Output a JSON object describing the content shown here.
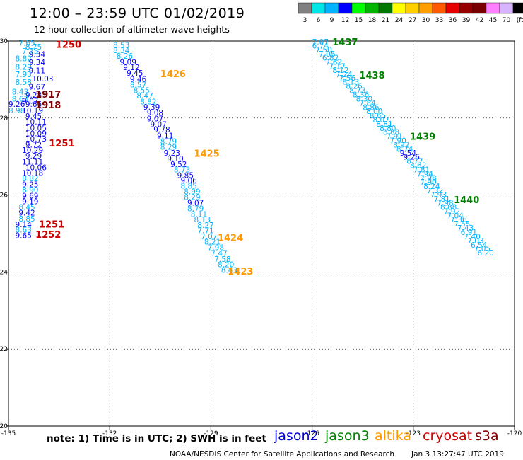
{
  "header": {
    "title": "12:00 – 23:59 UTC 01/02/2019",
    "subtitle": "12 hour collection of altimeter wave heights"
  },
  "colorbar": {
    "labels": [
      "3",
      "6",
      "9",
      "12",
      "15",
      "18",
      "21",
      "24",
      "27",
      "30",
      "33",
      "36",
      "39",
      "42",
      "45",
      "70",
      "(ft)"
    ],
    "colors": [
      "#808080",
      "#00e6e6",
      "#00b4ff",
      "#0000ff",
      "#00ff00",
      "#00b400",
      "#007800",
      "#ffff00",
      "#ffd000",
      "#ffa000",
      "#ff5a00",
      "#e60000",
      "#960000",
      "#780000",
      "#ff80ff",
      "#d7b4ff",
      "#000000"
    ]
  },
  "footer": {
    "note": "note:  1) Time is in UTC;  2) SWH is in feet",
    "credit_left": "NOAA/NESDIS Center for Satellite Applications and Research",
    "credit_right": "Jan  3 13:27:47 UTC 2019"
  },
  "legend": [
    {
      "name": "jason2",
      "color": "#0000cc"
    },
    {
      "name": "jason3",
      "color": "#008000"
    },
    {
      "name": "altika",
      "color": "#ff9900"
    },
    {
      "name": "cryosat",
      "color": "#cc0000"
    },
    {
      "name": "s3a",
      "color": "#800000"
    }
  ],
  "chart_data": {
    "type": "scatter",
    "title": "12:00 – 23:59 UTC 01/02/2019",
    "subtitle": "12 hour collection of altimeter wave heights",
    "xlabel": "",
    "ylabel": "",
    "xlim": [
      -135,
      -120
    ],
    "ylim": [
      20,
      30
    ],
    "xticks": [
      -135,
      -132,
      -129,
      -126,
      -123,
      -120
    ],
    "yticks": [
      20,
      22,
      24,
      26,
      28,
      30
    ],
    "xtick_labels": [
      "-135",
      "-132",
      "-129",
      "-126",
      "-123",
      "-120"
    ],
    "ytick_labels": [
      "20",
      "22",
      "24",
      "26",
      "28",
      "30"
    ],
    "grid": "dotted",
    "points": [
      {
        "x": -134.7,
        "y": 29.95,
        "t": "7.65",
        "c": "#00b4ff"
      },
      {
        "x": -134.5,
        "y": 29.85,
        "t": "8.75",
        "c": "#00b4ff"
      },
      {
        "x": -134.6,
        "y": 29.74,
        "t": "7.75",
        "c": "#00b4ff"
      },
      {
        "x": -134.4,
        "y": 29.66,
        "t": "9.34",
        "c": "#0000ff"
      },
      {
        "x": -134.8,
        "y": 29.55,
        "t": "8.82",
        "c": "#00b4ff"
      },
      {
        "x": -134.4,
        "y": 29.45,
        "t": "9.34",
        "c": "#0000ff"
      },
      {
        "x": -134.8,
        "y": 29.33,
        "t": "8.29",
        "c": "#00b4ff"
      },
      {
        "x": -134.4,
        "y": 29.24,
        "t": "9.11",
        "c": "#0000ff"
      },
      {
        "x": -134.8,
        "y": 29.14,
        "t": "7.93",
        "c": "#00b4ff"
      },
      {
        "x": -134.3,
        "y": 29.03,
        "t": "10.03",
        "c": "#0000ff"
      },
      {
        "x": -134.8,
        "y": 28.93,
        "t": "8.58",
        "c": "#00b4ff"
      },
      {
        "x": -134.4,
        "y": 28.81,
        "t": "9.67",
        "c": "#0000ff"
      },
      {
        "x": -134.9,
        "y": 28.69,
        "t": "8.43",
        "c": "#00b4ff"
      },
      {
        "x": -134.5,
        "y": 28.6,
        "t": "9.28",
        "c": "#0000ff"
      },
      {
        "x": -134.9,
        "y": 28.5,
        "t": "8.63",
        "c": "#00b4ff"
      },
      {
        "x": -134.6,
        "y": 28.45,
        "t": "9.07",
        "c": "#0000ff"
      },
      {
        "x": -135.0,
        "y": 28.36,
        "t": "9.26",
        "c": "#0000ff"
      },
      {
        "x": -134.5,
        "y": 28.36,
        "t": "9.66",
        "c": "#0000ff"
      },
      {
        "x": -135.0,
        "y": 28.2,
        "t": "8.98",
        "c": "#00b4ff"
      },
      {
        "x": -134.6,
        "y": 28.2,
        "t": "10.19",
        "c": "#0000ff"
      },
      {
        "x": -134.5,
        "y": 28.05,
        "t": "9.45",
        "c": "#0000ff"
      },
      {
        "x": -134.5,
        "y": 27.9,
        "t": "10.11",
        "c": "#0000ff"
      },
      {
        "x": -134.5,
        "y": 27.75,
        "t": "10.05",
        "c": "#0000ff"
      },
      {
        "x": -134.5,
        "y": 27.6,
        "t": "10.09",
        "c": "#0000ff"
      },
      {
        "x": -134.5,
        "y": 27.46,
        "t": "10.73",
        "c": "#0000ff"
      },
      {
        "x": -134.5,
        "y": 27.31,
        "t": "9.72",
        "c": "#0000ff"
      },
      {
        "x": -134.6,
        "y": 27.17,
        "t": "10.29",
        "c": "#0000ff"
      },
      {
        "x": -134.5,
        "y": 27.02,
        "t": "9.29",
        "c": "#0000ff"
      },
      {
        "x": -134.6,
        "y": 26.87,
        "t": "11.11",
        "c": "#0000ff"
      },
      {
        "x": -134.5,
        "y": 26.72,
        "t": "10.06",
        "c": "#0000ff"
      },
      {
        "x": -134.6,
        "y": 26.57,
        "t": "10.18",
        "c": "#0000ff"
      },
      {
        "x": -134.6,
        "y": 26.43,
        "t": "8.82",
        "c": "#00b4ff"
      },
      {
        "x": -134.6,
        "y": 26.28,
        "t": "9.25",
        "c": "#0000ff"
      },
      {
        "x": -134.6,
        "y": 26.14,
        "t": "8.90",
        "c": "#00b4ff"
      },
      {
        "x": -134.6,
        "y": 25.98,
        "t": "9.69",
        "c": "#0000ff"
      },
      {
        "x": -134.6,
        "y": 25.84,
        "t": "9.19",
        "c": "#0000ff"
      },
      {
        "x": -134.7,
        "y": 25.69,
        "t": "8.45",
        "c": "#00b4ff"
      },
      {
        "x": -134.7,
        "y": 25.54,
        "t": "9.42",
        "c": "#0000ff"
      },
      {
        "x": -134.7,
        "y": 25.39,
        "t": "8.85",
        "c": "#00b4ff"
      },
      {
        "x": -134.8,
        "y": 25.24,
        "t": "9.14",
        "c": "#0000ff"
      },
      {
        "x": -134.8,
        "y": 25.1,
        "t": "8.63",
        "c": "#00b4ff"
      },
      {
        "x": -134.8,
        "y": 24.95,
        "t": "9.65",
        "c": "#0000ff"
      },
      {
        "x": -131.9,
        "y": 29.9,
        "t": "8.53",
        "c": "#00b4ff"
      },
      {
        "x": -131.9,
        "y": 29.76,
        "t": "8.34",
        "c": "#00b4ff"
      },
      {
        "x": -131.8,
        "y": 29.61,
        "t": "8.26",
        "c": "#00b4ff"
      },
      {
        "x": -131.7,
        "y": 29.46,
        "t": "9.09",
        "c": "#0000ff"
      },
      {
        "x": -131.6,
        "y": 29.32,
        "t": "9.12",
        "c": "#0000ff"
      },
      {
        "x": -131.5,
        "y": 29.17,
        "t": "9.45",
        "c": "#0000ff"
      },
      {
        "x": -131.4,
        "y": 29.02,
        "t": "9.46",
        "c": "#0000ff"
      },
      {
        "x": -131.4,
        "y": 28.87,
        "t": "8.57",
        "c": "#00b4ff"
      },
      {
        "x": -131.3,
        "y": 28.72,
        "t": "8.55",
        "c": "#00b4ff"
      },
      {
        "x": -131.2,
        "y": 28.58,
        "t": "8.47",
        "c": "#00b4ff"
      },
      {
        "x": -131.1,
        "y": 28.43,
        "t": "8.82",
        "c": "#00b4ff"
      },
      {
        "x": -131.0,
        "y": 28.29,
        "t": "9.39",
        "c": "#0000ff"
      },
      {
        "x": -130.9,
        "y": 28.14,
        "t": "9.08",
        "c": "#0000ff"
      },
      {
        "x": -130.9,
        "y": 27.99,
        "t": "9.07",
        "c": "#0000ff"
      },
      {
        "x": -130.8,
        "y": 27.84,
        "t": "9.07",
        "c": "#0000ff"
      },
      {
        "x": -130.7,
        "y": 27.7,
        "t": "9.78",
        "c": "#0000ff"
      },
      {
        "x": -130.6,
        "y": 27.55,
        "t": "9.11",
        "c": "#0000ff"
      },
      {
        "x": -130.5,
        "y": 27.4,
        "t": "8.79",
        "c": "#00b4ff"
      },
      {
        "x": -130.5,
        "y": 27.25,
        "t": "8.29",
        "c": "#00b4ff"
      },
      {
        "x": -130.4,
        "y": 27.1,
        "t": "9.23",
        "c": "#0000ff"
      },
      {
        "x": -130.3,
        "y": 26.95,
        "t": "9.10",
        "c": "#0000ff"
      },
      {
        "x": -130.2,
        "y": 26.8,
        "t": "9.52",
        "c": "#0000ff"
      },
      {
        "x": -130.1,
        "y": 26.66,
        "t": "8.73",
        "c": "#00b4ff"
      },
      {
        "x": -130.0,
        "y": 26.52,
        "t": "9.85",
        "c": "#0000ff"
      },
      {
        "x": -129.9,
        "y": 26.38,
        "t": "9.06",
        "c": "#0000ff"
      },
      {
        "x": -129.9,
        "y": 26.24,
        "t": "8.85",
        "c": "#00b4ff"
      },
      {
        "x": -129.8,
        "y": 26.09,
        "t": "8.99",
        "c": "#00b4ff"
      },
      {
        "x": -129.8,
        "y": 25.95,
        "t": "8.29",
        "c": "#00b4ff"
      },
      {
        "x": -129.7,
        "y": 25.8,
        "t": "9.07",
        "c": "#0000ff"
      },
      {
        "x": -129.7,
        "y": 25.65,
        "t": "8.79",
        "c": "#00b4ff"
      },
      {
        "x": -129.6,
        "y": 25.51,
        "t": "8.11",
        "c": "#00b4ff"
      },
      {
        "x": -129.5,
        "y": 25.37,
        "t": "8.13",
        "c": "#00b4ff"
      },
      {
        "x": -129.4,
        "y": 25.22,
        "t": "8.27",
        "c": "#00b4ff"
      },
      {
        "x": -129.4,
        "y": 25.08,
        "t": "7.71",
        "c": "#00b4ff"
      },
      {
        "x": -129.3,
        "y": 24.93,
        "t": "7.07",
        "c": "#00b4ff"
      },
      {
        "x": -129.2,
        "y": 24.79,
        "t": "8.21",
        "c": "#00b4ff"
      },
      {
        "x": -129.1,
        "y": 24.64,
        "t": "7.98",
        "c": "#00b4ff"
      },
      {
        "x": -129.0,
        "y": 24.49,
        "t": "7.47",
        "c": "#00b4ff"
      },
      {
        "x": -128.9,
        "y": 24.34,
        "t": "7.58",
        "c": "#00b4ff"
      },
      {
        "x": -128.8,
        "y": 24.2,
        "t": "8.20",
        "c": "#00b4ff"
      },
      {
        "x": -128.7,
        "y": 24.05,
        "t": "8.43",
        "c": "#00b4ff"
      },
      {
        "x": -126.0,
        "y": 29.98,
        "t": "7.07",
        "c": "#00b4ff"
      },
      {
        "x": -126.0,
        "y": 29.88,
        "t": "6.74",
        "c": "#00b4ff"
      },
      {
        "x": -125.9,
        "y": 29.78,
        "t": "7.50",
        "c": "#00b4ff"
      },
      {
        "x": -125.8,
        "y": 29.67,
        "t": "7.05",
        "c": "#00b4ff"
      },
      {
        "x": -125.7,
        "y": 29.57,
        "t": "6.82",
        "c": "#00b4ff"
      },
      {
        "x": -125.6,
        "y": 29.46,
        "t": "7.62",
        "c": "#00b4ff"
      },
      {
        "x": -125.5,
        "y": 29.35,
        "t": "7.17",
        "c": "#00b4ff"
      },
      {
        "x": -125.4,
        "y": 29.25,
        "t": "8.12",
        "c": "#00b4ff"
      },
      {
        "x": -125.3,
        "y": 29.14,
        "t": "7.24",
        "c": "#00b4ff"
      },
      {
        "x": -125.2,
        "y": 29.04,
        "t": "7.56",
        "c": "#00b4ff"
      },
      {
        "x": -125.1,
        "y": 28.94,
        "t": "8.13",
        "c": "#00b4ff"
      },
      {
        "x": -125.0,
        "y": 28.83,
        "t": "8.26",
        "c": "#00b4ff"
      },
      {
        "x": -124.9,
        "y": 28.72,
        "t": "8.73",
        "c": "#00b4ff"
      },
      {
        "x": -124.8,
        "y": 28.61,
        "t": "8.36",
        "c": "#00b4ff"
      },
      {
        "x": -124.7,
        "y": 28.5,
        "t": "8.30",
        "c": "#00b4ff"
      },
      {
        "x": -124.6,
        "y": 28.39,
        "t": "7.84",
        "c": "#00b4ff"
      },
      {
        "x": -124.5,
        "y": 28.28,
        "t": "8.86",
        "c": "#00b4ff"
      },
      {
        "x": -124.4,
        "y": 28.18,
        "t": "8.00",
        "c": "#00b4ff"
      },
      {
        "x": -124.3,
        "y": 28.07,
        "t": "8.65",
        "c": "#00b4ff"
      },
      {
        "x": -124.2,
        "y": 27.96,
        "t": "8.07",
        "c": "#00b4ff"
      },
      {
        "x": -124.1,
        "y": 27.85,
        "t": "8.81",
        "c": "#00b4ff"
      },
      {
        "x": -124.0,
        "y": 27.74,
        "t": "8.80",
        "c": "#00b4ff"
      },
      {
        "x": -123.9,
        "y": 27.64,
        "t": "8.88",
        "c": "#00b4ff"
      },
      {
        "x": -123.8,
        "y": 27.53,
        "t": "7.91",
        "c": "#00b4ff"
      },
      {
        "x": -123.7,
        "y": 27.42,
        "t": "7.90",
        "c": "#00b4ff"
      },
      {
        "x": -123.6,
        "y": 27.31,
        "t": "8.92",
        "c": "#00b4ff"
      },
      {
        "x": -123.5,
        "y": 27.2,
        "t": "8.74",
        "c": "#00b4ff"
      },
      {
        "x": -123.4,
        "y": 27.1,
        "t": "9.54",
        "c": "#0000ff"
      },
      {
        "x": -123.3,
        "y": 26.99,
        "t": "9.26",
        "c": "#0000ff"
      },
      {
        "x": -123.2,
        "y": 26.88,
        "t": "8.77",
        "c": "#00b4ff"
      },
      {
        "x": -123.1,
        "y": 26.77,
        "t": "8.62",
        "c": "#00b4ff"
      },
      {
        "x": -123.0,
        "y": 26.66,
        "t": "7.81",
        "c": "#00b4ff"
      },
      {
        "x": -122.9,
        "y": 26.55,
        "t": "7.94",
        "c": "#00b4ff"
      },
      {
        "x": -122.8,
        "y": 26.44,
        "t": "7.98",
        "c": "#00b4ff"
      },
      {
        "x": -122.8,
        "y": 26.34,
        "t": "7.90",
        "c": "#00b4ff"
      },
      {
        "x": -122.7,
        "y": 26.23,
        "t": "8.24",
        "c": "#00b4ff"
      },
      {
        "x": -122.6,
        "y": 26.12,
        "t": "7.32",
        "c": "#00b4ff"
      },
      {
        "x": -122.5,
        "y": 26.01,
        "t": "7.93",
        "c": "#00b4ff"
      },
      {
        "x": -122.4,
        "y": 25.9,
        "t": "7.81",
        "c": "#00b4ff"
      },
      {
        "x": -122.3,
        "y": 25.8,
        "t": "7.98",
        "c": "#00b4ff"
      },
      {
        "x": -122.2,
        "y": 25.69,
        "t": "8.88",
        "c": "#00b4ff"
      },
      {
        "x": -122.1,
        "y": 25.58,
        "t": "7.92",
        "c": "#00b4ff"
      },
      {
        "x": -122.0,
        "y": 25.47,
        "t": "7.04",
        "c": "#00b4ff"
      },
      {
        "x": -121.9,
        "y": 25.37,
        "t": "7.36",
        "c": "#00b4ff"
      },
      {
        "x": -121.8,
        "y": 25.26,
        "t": "7.55",
        "c": "#00b4ff"
      },
      {
        "x": -121.7,
        "y": 25.15,
        "t": "7.43",
        "c": "#00b4ff"
      },
      {
        "x": -121.6,
        "y": 25.04,
        "t": "6.91",
        "c": "#00b4ff"
      },
      {
        "x": -121.5,
        "y": 24.93,
        "t": "7.40",
        "c": "#00b4ff"
      },
      {
        "x": -121.4,
        "y": 24.82,
        "t": "7.03",
        "c": "#00b4ff"
      },
      {
        "x": -121.3,
        "y": 24.71,
        "t": "6.54",
        "c": "#00b4ff"
      },
      {
        "x": -121.2,
        "y": 24.61,
        "t": "7.05",
        "c": "#00b4ff"
      },
      {
        "x": -121.1,
        "y": 24.5,
        "t": "6.20",
        "c": "#00b4ff"
      }
    ],
    "time_labels": [
      {
        "x": -133.6,
        "y": 29.92,
        "t": "1250",
        "c": "#cc0000"
      },
      {
        "x": -134.2,
        "y": 28.62,
        "t": "1917",
        "c": "#800000"
      },
      {
        "x": -134.2,
        "y": 28.35,
        "t": "1918",
        "c": "#800000"
      },
      {
        "x": -133.8,
        "y": 27.35,
        "t": "1251",
        "c": "#cc0000"
      },
      {
        "x": -134.1,
        "y": 25.25,
        "t": "1251",
        "c": "#cc0000"
      },
      {
        "x": -134.2,
        "y": 24.98,
        "t": "1252",
        "c": "#cc0000"
      },
      {
        "x": -130.5,
        "y": 29.15,
        "t": "1426",
        "c": "#ff9900"
      },
      {
        "x": -129.5,
        "y": 27.09,
        "t": "1425",
        "c": "#ff9900"
      },
      {
        "x": -128.8,
        "y": 24.9,
        "t": "1424",
        "c": "#ff9900"
      },
      {
        "x": -128.5,
        "y": 24.03,
        "t": "1423",
        "c": "#ff9900"
      },
      {
        "x": -125.4,
        "y": 29.98,
        "t": "1437",
        "c": "#008000"
      },
      {
        "x": -124.6,
        "y": 29.12,
        "t": "1438",
        "c": "#008000"
      },
      {
        "x": -123.1,
        "y": 27.53,
        "t": "1439",
        "c": "#008000"
      },
      {
        "x": -121.8,
        "y": 25.88,
        "t": "1440",
        "c": "#008000"
      }
    ]
  }
}
